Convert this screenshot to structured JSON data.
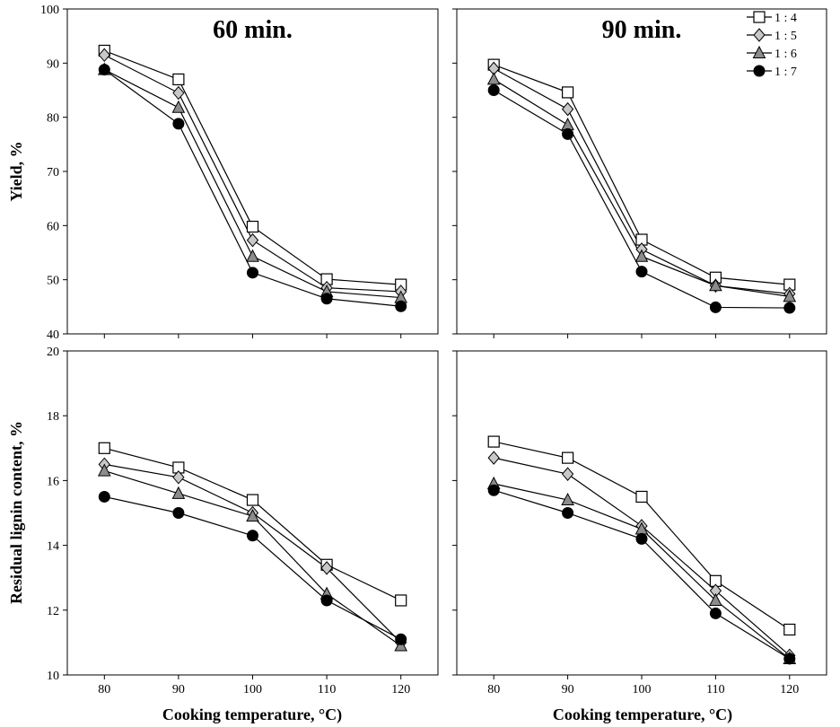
{
  "figure": {
    "top_ylabel": "Yield, %",
    "bottom_ylabel": "Residual lignin content, %",
    "left_xlabel": "Cooking temperature, °C)",
    "right_xlabel": "Cooking temperature, °C)"
  },
  "chart_data": [
    {
      "type": "line",
      "title": "60 min.",
      "ylabel": "Yield, %",
      "x": [
        80,
        90,
        100,
        110,
        120
      ],
      "xticks": [
        "80",
        "90",
        "100",
        "110",
        "120"
      ],
      "ylim": [
        40,
        100
      ],
      "yticks": [
        "40",
        "50",
        "60",
        "70",
        "80",
        "90",
        "100"
      ],
      "grid": false,
      "series": [
        {
          "name": "1 : 4",
          "marker": "square",
          "color": "#ffffff",
          "values": [
            92.3,
            87.0,
            59.8,
            50.1,
            49.1
          ]
        },
        {
          "name": "1 : 5",
          "marker": "diamond",
          "color": "#c8c8c8",
          "values": [
            91.5,
            84.5,
            57.3,
            48.5,
            47.8
          ]
        },
        {
          "name": "1 : 6",
          "marker": "triangle",
          "color": "#8c8c8c",
          "values": [
            88.8,
            81.8,
            54.3,
            47.8,
            46.7
          ]
        },
        {
          "name": "1 : 7",
          "marker": "circle",
          "color": "#000000",
          "values": [
            88.8,
            78.8,
            51.3,
            46.5,
            45.1
          ]
        }
      ]
    },
    {
      "type": "line",
      "title": "90 min.",
      "x": [
        80,
        90,
        100,
        110,
        120
      ],
      "ylim": [
        40,
        100
      ],
      "grid": false,
      "legend": {
        "position": "top-right",
        "labels": [
          "1 : 4",
          "1 : 5",
          "1 : 6",
          "1 : 7"
        ]
      },
      "series": [
        {
          "name": "1 : 4",
          "marker": "square",
          "color": "#ffffff",
          "values": [
            89.7,
            84.6,
            57.4,
            50.4,
            49.1
          ]
        },
        {
          "name": "1 : 5",
          "marker": "diamond",
          "color": "#c8c8c8",
          "values": [
            89.0,
            81.5,
            55.6,
            48.9,
            47.4
          ]
        },
        {
          "name": "1 : 6",
          "marker": "triangle",
          "color": "#8c8c8c",
          "values": [
            87.0,
            78.6,
            54.3,
            48.9,
            46.9
          ]
        },
        {
          "name": "1 : 7",
          "marker": "circle",
          "color": "#000000",
          "values": [
            85.0,
            76.9,
            51.5,
            44.9,
            44.8
          ]
        }
      ]
    },
    {
      "type": "line",
      "ylabel": "Residual lignin content, %",
      "xlabel": "Cooking temperature, °C)",
      "x": [
        80,
        90,
        100,
        110,
        120
      ],
      "xticks": [
        "80",
        "90",
        "100",
        "110",
        "120"
      ],
      "ylim": [
        10,
        20
      ],
      "yticks": [
        "10",
        "12",
        "14",
        "16",
        "18",
        "20"
      ],
      "grid": false,
      "series": [
        {
          "name": "1 : 4",
          "marker": "square",
          "color": "#ffffff",
          "values": [
            17.0,
            16.4,
            15.4,
            13.4,
            12.3
          ]
        },
        {
          "name": "1 : 5",
          "marker": "diamond",
          "color": "#c8c8c8",
          "values": [
            16.5,
            16.1,
            15.0,
            13.3,
            11.0
          ]
        },
        {
          "name": "1 : 6",
          "marker": "triangle",
          "color": "#8c8c8c",
          "values": [
            16.3,
            15.6,
            14.9,
            12.5,
            10.9
          ]
        },
        {
          "name": "1 : 7",
          "marker": "circle",
          "color": "#000000",
          "values": [
            15.5,
            15.0,
            14.3,
            12.3,
            11.1
          ]
        }
      ]
    },
    {
      "type": "line",
      "xlabel": "Cooking temperature, °C)",
      "x": [
        80,
        90,
        100,
        110,
        120
      ],
      "xticks": [
        "80",
        "90",
        "100",
        "110",
        "120"
      ],
      "ylim": [
        10,
        20
      ],
      "grid": false,
      "series": [
        {
          "name": "1 : 4",
          "marker": "square",
          "color": "#ffffff",
          "values": [
            17.2,
            16.7,
            15.5,
            12.9,
            11.4
          ]
        },
        {
          "name": "1 : 5",
          "marker": "diamond",
          "color": "#c8c8c8",
          "values": [
            16.7,
            16.2,
            14.6,
            12.6,
            10.6
          ]
        },
        {
          "name": "1 : 6",
          "marker": "triangle",
          "color": "#8c8c8c",
          "values": [
            15.9,
            15.4,
            14.5,
            12.3,
            10.5
          ]
        },
        {
          "name": "1 : 7",
          "marker": "circle",
          "color": "#000000",
          "values": [
            15.7,
            15.0,
            14.2,
            11.9,
            10.5
          ]
        }
      ]
    }
  ]
}
